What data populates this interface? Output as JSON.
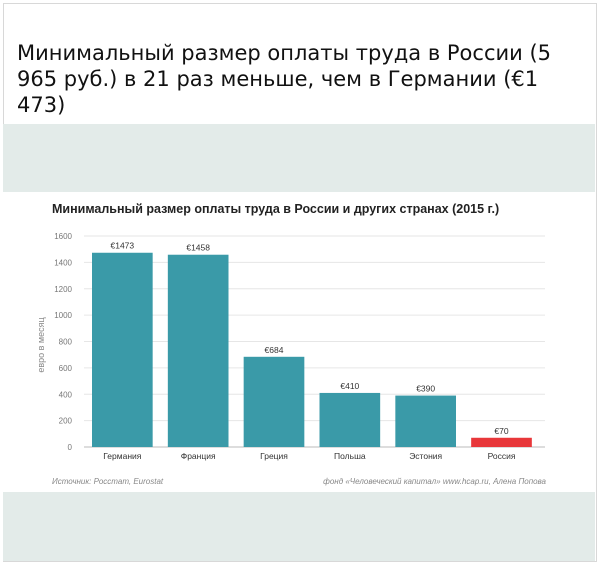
{
  "headline": "Минимальный размер оплаты труда в России (5 965 руб.) в 21 раз меньше, чем в Германии (€1 473)",
  "chart_data": {
    "type": "bar",
    "title": "Минимальный размер оплаты труда в России и других странах (2015 г.)",
    "ylabel": "евро в месяц",
    "xlabel": "",
    "ylim": [
      0,
      1600
    ],
    "yticks": [
      0,
      200,
      400,
      600,
      800,
      1000,
      1200,
      1400,
      1600
    ],
    "grid": true,
    "categories": [
      "Германия",
      "Франция",
      "Греция",
      "Польша",
      "Эстония",
      "Россия"
    ],
    "values": [
      1473,
      1458,
      684,
      410,
      390,
      70
    ],
    "value_labels": [
      "€1473",
      "€1458",
      "€684",
      "€410",
      "€390",
      "€70"
    ],
    "colors": [
      "#3a9aa8",
      "#3a9aa8",
      "#3a9aa8",
      "#3a9aa8",
      "#3a9aa8",
      "#e8373a"
    ],
    "source": "Источник: Росстат, Eurostat",
    "credit": "фонд «Человеческий капитал» www.hcap.ru, Алена Попова"
  }
}
